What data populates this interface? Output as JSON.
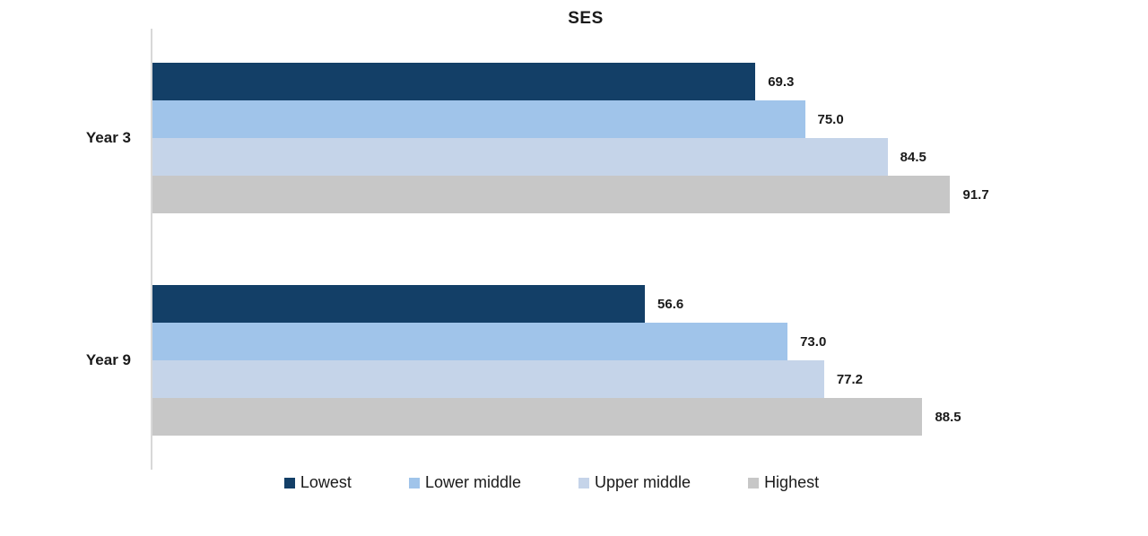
{
  "chart_data": {
    "type": "bar",
    "orientation": "horizontal",
    "title": "SES",
    "categories": [
      "Year 3",
      "Year 9"
    ],
    "series": [
      {
        "name": "Lowest",
        "color": "#133F67",
        "values": [
          69.3,
          56.6
        ]
      },
      {
        "name": "Lower middle",
        "color": "#A0C4EA",
        "values": [
          75.0,
          73.0
        ]
      },
      {
        "name": "Upper middle",
        "color": "#C5D4E9",
        "values": [
          84.5,
          77.2
        ]
      },
      {
        "name": "Highest",
        "color": "#C7C7C7",
        "values": [
          91.7,
          88.5
        ]
      }
    ],
    "value_labels": [
      [
        "69.3",
        "75.0",
        "84.5",
        "91.7"
      ],
      [
        "56.6",
        "73.0",
        "77.2",
        "88.5"
      ]
    ],
    "xlim": [
      0,
      100
    ],
    "grid": false,
    "axis_line_color": "#D8D8D8",
    "legend_position": "bottom"
  }
}
